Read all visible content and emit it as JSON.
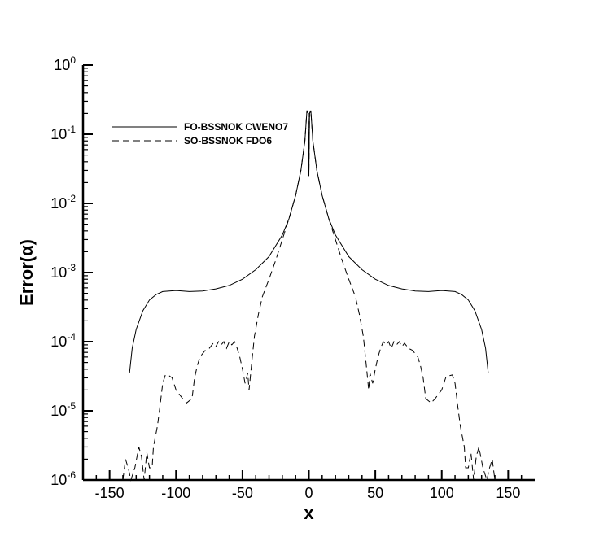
{
  "chart_data": {
    "type": "line",
    "xlabel": "x",
    "ylabel": "Error(α)",
    "yscale": "log",
    "xlim": [
      -170,
      170
    ],
    "ylim": [
      1e-06,
      1
    ],
    "x_ticks": [
      -150,
      -100,
      -50,
      0,
      50,
      100,
      150
    ],
    "y_ticks": [
      {
        "base": "10",
        "exp": "-6",
        "value": 1e-06
      },
      {
        "base": "10",
        "exp": "-5",
        "value": 1e-05
      },
      {
        "base": "10",
        "exp": "-4",
        "value": 0.0001
      },
      {
        "base": "10",
        "exp": "-3",
        "value": 0.001
      },
      {
        "base": "10",
        "exp": "-2",
        "value": 0.01
      },
      {
        "base": "10",
        "exp": "-1",
        "value": 0.1
      },
      {
        "base": "10",
        "exp": "0",
        "value": 1
      }
    ],
    "legend_position": "top-left",
    "grid": false,
    "series": [
      {
        "name": "FO-BSSNOK CWENO7",
        "style": "solid",
        "points": [
          [
            -135,
            3.5e-05
          ],
          [
            -133,
            8e-05
          ],
          [
            -130,
            0.00015
          ],
          [
            -125,
            0.00028
          ],
          [
            -120,
            0.0004
          ],
          [
            -115,
            0.00048
          ],
          [
            -110,
            0.00053
          ],
          [
            -100,
            0.00055
          ],
          [
            -90,
            0.00053
          ],
          [
            -80,
            0.00054
          ],
          [
            -70,
            0.00058
          ],
          [
            -60,
            0.00065
          ],
          [
            -50,
            0.0008
          ],
          [
            -40,
            0.0011
          ],
          [
            -30,
            0.0017
          ],
          [
            -20,
            0.0035
          ],
          [
            -15,
            0.006
          ],
          [
            -10,
            0.013
          ],
          [
            -6,
            0.03
          ],
          [
            -3,
            0.08
          ],
          [
            -1.5,
            0.22
          ],
          [
            -0.5,
            0.2
          ],
          [
            0,
            0.025
          ],
          [
            0.5,
            0.2
          ],
          [
            1.5,
            0.22
          ],
          [
            3,
            0.08
          ],
          [
            6,
            0.03
          ],
          [
            10,
            0.013
          ],
          [
            15,
            0.006
          ],
          [
            20,
            0.0035
          ],
          [
            30,
            0.0017
          ],
          [
            40,
            0.0011
          ],
          [
            50,
            0.0008
          ],
          [
            60,
            0.00065
          ],
          [
            70,
            0.00058
          ],
          [
            80,
            0.00054
          ],
          [
            90,
            0.00053
          ],
          [
            100,
            0.00055
          ],
          [
            110,
            0.00053
          ],
          [
            115,
            0.00048
          ],
          [
            120,
            0.0004
          ],
          [
            125,
            0.00028
          ],
          [
            130,
            0.00015
          ],
          [
            133,
            8e-05
          ],
          [
            135,
            3.5e-05
          ]
        ]
      },
      {
        "name": "SO-BSSNOK FDO6",
        "style": "dashed",
        "points": [
          [
            -140,
            1e-06
          ],
          [
            -138,
            2e-06
          ],
          [
            -136,
            1.5e-06
          ],
          [
            -134,
            1e-06
          ],
          [
            -131,
            1.5e-06
          ],
          [
            -128,
            3e-06
          ],
          [
            -126,
            2.2e-06
          ],
          [
            -124,
            1e-06
          ],
          [
            -122,
            2.5e-06
          ],
          [
            -120,
            1.5e-06
          ],
          [
            -118,
            1.5e-06
          ],
          [
            -117,
            3e-06
          ],
          [
            -114,
            6e-06
          ],
          [
            -112,
            1.2e-05
          ],
          [
            -110,
            2.5e-05
          ],
          [
            -108,
            3.3e-05
          ],
          [
            -105,
            3.2e-05
          ],
          [
            -103,
            3e-05
          ],
          [
            -100,
            2e-05
          ],
          [
            -95,
            1.5e-05
          ],
          [
            -92,
            1.3e-05
          ],
          [
            -88,
            1.5e-05
          ],
          [
            -86,
            3e-05
          ],
          [
            -84,
            4.5e-05
          ],
          [
            -82,
            6e-05
          ],
          [
            -78,
            7.5e-05
          ],
          [
            -75,
            8e-05
          ],
          [
            -72,
            9.5e-05
          ],
          [
            -70,
            8.5e-05
          ],
          [
            -68,
            0.0001
          ],
          [
            -66,
            9e-05
          ],
          [
            -64,
            0.0001
          ],
          [
            -62,
            8e-05
          ],
          [
            -60,
            0.0001
          ],
          [
            -58,
            9e-05
          ],
          [
            -56,
            0.0001
          ],
          [
            -54,
            8e-05
          ],
          [
            -52,
            6e-05
          ],
          [
            -50,
            4e-05
          ],
          [
            -48,
            2.5e-05
          ],
          [
            -46,
            3.5e-05
          ],
          [
            -45,
            2e-05
          ],
          [
            -43,
            5e-05
          ],
          [
            -41,
            0.00012
          ],
          [
            -38,
            0.00025
          ],
          [
            -35,
            0.00045
          ],
          [
            -30,
            0.0008
          ],
          [
            -25,
            0.0015
          ],
          [
            -20,
            0.003
          ],
          [
            -15,
            0.006
          ],
          [
            -10,
            0.013
          ],
          [
            -6,
            0.03
          ],
          [
            -3,
            0.08
          ],
          [
            -1.5,
            0.22
          ],
          [
            -0.5,
            0.2
          ],
          [
            0,
            0.025
          ],
          [
            0.5,
            0.2
          ],
          [
            1.5,
            0.22
          ],
          [
            3,
            0.08
          ],
          [
            6,
            0.03
          ],
          [
            10,
            0.013
          ],
          [
            15,
            0.006
          ],
          [
            20,
            0.003
          ],
          [
            25,
            0.0015
          ],
          [
            30,
            0.0008
          ],
          [
            35,
            0.00045
          ],
          [
            38,
            0.00025
          ],
          [
            41,
            0.00012
          ],
          [
            43,
            5e-05
          ],
          [
            45,
            2e-05
          ],
          [
            46,
            3.5e-05
          ],
          [
            48,
            2.5e-05
          ],
          [
            50,
            4e-05
          ],
          [
            52,
            6e-05
          ],
          [
            54,
            8e-05
          ],
          [
            56,
            0.0001
          ],
          [
            58,
            9e-05
          ],
          [
            60,
            0.0001
          ],
          [
            62,
            8e-05
          ],
          [
            64,
            0.0001
          ],
          [
            66,
            9e-05
          ],
          [
            68,
            0.0001
          ],
          [
            70,
            8.5e-05
          ],
          [
            72,
            9.5e-05
          ],
          [
            75,
            8e-05
          ],
          [
            78,
            7.5e-05
          ],
          [
            82,
            6e-05
          ],
          [
            84,
            4.5e-05
          ],
          [
            86,
            3e-05
          ],
          [
            88,
            1.5e-05
          ],
          [
            92,
            1.3e-05
          ],
          [
            95,
            1.5e-05
          ],
          [
            100,
            2e-05
          ],
          [
            103,
            3e-05
          ],
          [
            105,
            3.2e-05
          ],
          [
            108,
            3.3e-05
          ],
          [
            110,
            2.5e-05
          ],
          [
            112,
            1.2e-05
          ],
          [
            114,
            6e-06
          ],
          [
            117,
            3e-06
          ],
          [
            118,
            1.5e-06
          ],
          [
            120,
            1.5e-06
          ],
          [
            122,
            2.5e-06
          ],
          [
            124,
            1e-06
          ],
          [
            126,
            2.2e-06
          ],
          [
            128,
            3e-06
          ],
          [
            131,
            1.5e-06
          ],
          [
            134,
            1e-06
          ],
          [
            136,
            1.5e-06
          ],
          [
            138,
            2e-06
          ],
          [
            140,
            1e-06
          ]
        ]
      }
    ]
  }
}
